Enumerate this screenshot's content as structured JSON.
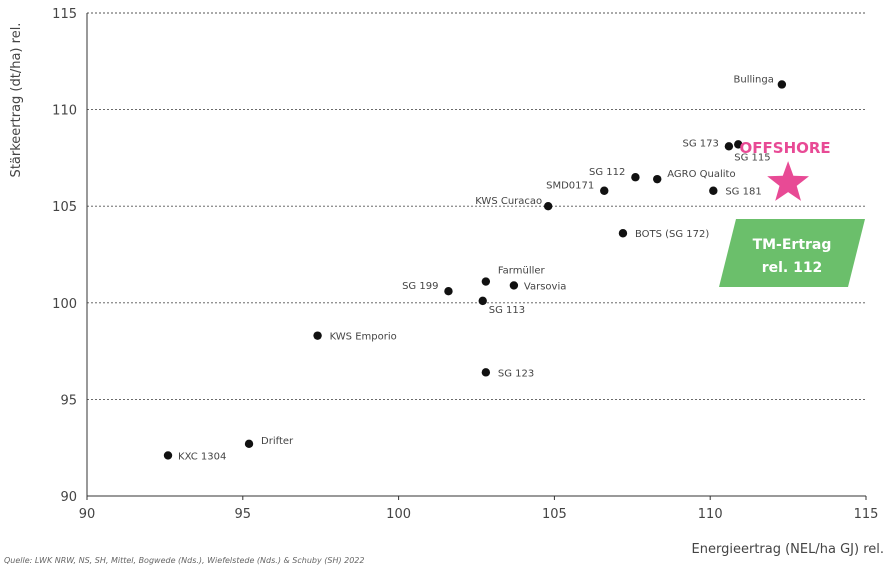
{
  "chart_data": {
    "type": "scatter",
    "title": "",
    "xlabel": "Energieertrag (NEL/ha GJ) rel.",
    "ylabel": "Stärkeertrag (dt/ha) rel.",
    "xlim": [
      90,
      115
    ],
    "ylim": [
      90,
      115
    ],
    "xticks": [
      "90",
      "95",
      "100",
      "105",
      "110",
      "115"
    ],
    "yticks": [
      "90",
      "95",
      "100",
      "105",
      "110",
      "115"
    ],
    "grid": "horizontal dotted",
    "points": [
      {
        "label": "KXC 1304",
        "x": 92.6,
        "y": 92.1
      },
      {
        "label": "Drifter",
        "x": 95.2,
        "y": 92.7
      },
      {
        "label": "KWS Emporio",
        "x": 97.4,
        "y": 98.3
      },
      {
        "label": "SG 199",
        "x": 101.6,
        "y": 100.6
      },
      {
        "label": "Farmüller",
        "x": 102.8,
        "y": 101.1
      },
      {
        "label": "SG 113",
        "x": 102.7,
        "y": 100.1
      },
      {
        "label": "Varsovia",
        "x": 103.7,
        "y": 100.9
      },
      {
        "label": "SG 123",
        "x": 102.8,
        "y": 96.4
      },
      {
        "label": "KWS Curacao",
        "x": 104.8,
        "y": 105.0
      },
      {
        "label": "SMD0171",
        "x": 106.6,
        "y": 105.8
      },
      {
        "label": "SG 112",
        "x": 107.6,
        "y": 106.5
      },
      {
        "label": "AGRO Qualito",
        "x": 108.3,
        "y": 106.4
      },
      {
        "label": "BOTS (SG 172)",
        "x": 107.2,
        "y": 103.6
      },
      {
        "label": "SG 181",
        "x": 110.1,
        "y": 105.8
      },
      {
        "label": "SG 173",
        "x": 110.6,
        "y": 108.1
      },
      {
        "label": "SG 115",
        "x": 110.9,
        "y": 108.2
      },
      {
        "label": "Bullinga",
        "x": 112.3,
        "y": 111.3
      }
    ],
    "highlight": {
      "label": "OFFSHORE",
      "x": 112.5,
      "y": 106.3,
      "color": "#e84a95",
      "marker": "star"
    },
    "annotation": {
      "line1": "TM-Ertrag",
      "line2": "rel. 112",
      "color": "#6bbf6b"
    },
    "source": "Quelle: LWK NRW, NS, SH, Mittel, Bogwede (Nds.), Wiefelstede (Nds.) & Schuby (SH) 2022"
  }
}
